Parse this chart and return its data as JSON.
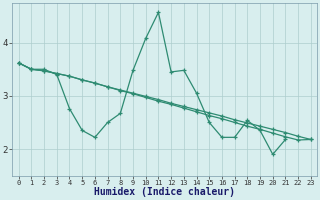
{
  "xlabel": "Humidex (Indice chaleur)",
  "x_values": [
    0,
    1,
    2,
    3,
    4,
    5,
    6,
    7,
    8,
    9,
    10,
    11,
    12,
    13,
    14,
    15,
    16,
    17,
    18,
    19,
    20,
    21,
    22,
    23
  ],
  "line_main_y": [
    3.62,
    3.5,
    3.5,
    3.4,
    2.76,
    2.35,
    2.22,
    2.5,
    2.67,
    3.48,
    4.08,
    4.57,
    3.45,
    3.48,
    3.05,
    2.5,
    2.22,
    2.22,
    2.54,
    2.35,
    1.9,
    2.18,
    null,
    null
  ],
  "line_trend1_y": [
    3.62,
    3.5,
    3.47,
    3.42,
    3.37,
    3.3,
    3.24,
    3.17,
    3.1,
    3.04,
    2.97,
    2.9,
    2.84,
    2.77,
    2.7,
    2.63,
    2.57,
    2.5,
    2.43,
    2.37,
    2.3,
    2.23,
    2.17,
    2.18
  ],
  "line_trend2_y": [
    3.62,
    3.5,
    3.47,
    3.42,
    3.37,
    3.3,
    3.24,
    3.17,
    3.11,
    3.05,
    2.99,
    2.93,
    2.86,
    2.8,
    2.74,
    2.68,
    2.62,
    2.55,
    2.49,
    2.43,
    2.37,
    2.31,
    2.24,
    2.18
  ],
  "color": "#2e8b72",
  "bg_color": "#d8eeee",
  "grid_color": "#aecece",
  "ylim": [
    1.5,
    4.75
  ],
  "yticks": [
    2,
    3,
    4
  ],
  "xlim": [
    -0.5,
    23.5
  ]
}
